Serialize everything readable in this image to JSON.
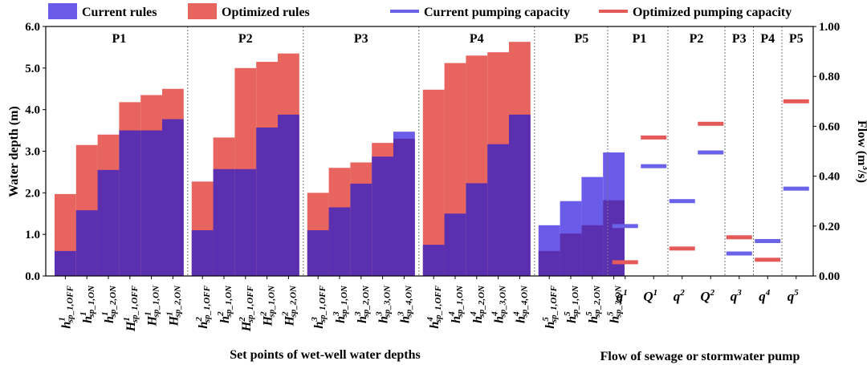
{
  "legend": {
    "current_rules": "Current rules",
    "optimized_rules": "Optimized rules",
    "current_capacity": "Current pumping capacity",
    "optimized_capacity": "Optimized pumping capacity"
  },
  "colors": {
    "current": "#6a5ce8",
    "optimized": "#e8645e",
    "overlap": "#5a2fb0",
    "current_line": "#6a62e8",
    "optimized_line": "#e45a58"
  },
  "chart_data": [
    {
      "type": "bar",
      "title": "",
      "ylabel": "Water depth (m)",
      "xlabel": "Set points of wet-well water depths",
      "ylim": [
        0,
        6
      ],
      "yticks": [
        "0.0",
        "1.0",
        "2.0",
        "3.0",
        "4.0",
        "5.0",
        "6.0"
      ],
      "groups": [
        {
          "name": "P1",
          "labels": [
            {
              "base": "h",
              "sup": "1",
              "sub": "sp_1,OFF"
            },
            {
              "base": "h",
              "sup": "1",
              "sub": "sp_1,ON"
            },
            {
              "base": "h",
              "sup": "1",
              "sub": "sp_2,ON"
            },
            {
              "base": "H",
              "sup": "1",
              "sub": "sp_1,OFF"
            },
            {
              "base": "H",
              "sup": "1",
              "sub": "sp_1,ON"
            },
            {
              "base": "H",
              "sup": "1",
              "sub": "sp_2,ON"
            }
          ],
          "current": [
            0.6,
            1.58,
            2.55,
            3.5,
            3.5,
            3.77
          ],
          "optimized": [
            1.97,
            3.15,
            3.4,
            4.18,
            4.35,
            4.5
          ]
        },
        {
          "name": "P2",
          "labels": [
            {
              "base": "h",
              "sup": "2",
              "sub": "sp_1,OFF"
            },
            {
              "base": "h",
              "sup": "2",
              "sub": "sp_1,ON"
            },
            {
              "base": "H",
              "sup": "2",
              "sub": "sp_1,OFF"
            },
            {
              "base": "H",
              "sup": "2",
              "sub": "sp_1,ON"
            },
            {
              "base": "H",
              "sup": "2",
              "sub": "sp_2,ON"
            }
          ],
          "current": [
            1.1,
            2.57,
            2.57,
            3.57,
            3.88
          ],
          "optimized": [
            2.27,
            3.33,
            5.0,
            5.15,
            5.35
          ]
        },
        {
          "name": "P3",
          "labels": [
            {
              "base": "h",
              "sup": "3",
              "sub": "sp_1,OFF"
            },
            {
              "base": "h",
              "sup": "3",
              "sub": "sp_1,ON"
            },
            {
              "base": "h",
              "sup": "3",
              "sub": "sp_2,ON"
            },
            {
              "base": "h",
              "sup": "3",
              "sub": "sp_3,ON"
            },
            {
              "base": "h",
              "sup": "3",
              "sub": "sp_4,ON"
            }
          ],
          "current": [
            1.1,
            1.65,
            2.22,
            2.87,
            3.47
          ],
          "optimized": [
            2.0,
            2.6,
            2.73,
            3.2,
            3.3
          ]
        },
        {
          "name": "P4",
          "labels": [
            {
              "base": "h",
              "sup": "4",
              "sub": "sp_1,OFF"
            },
            {
              "base": "h",
              "sup": "4",
              "sub": "sp_1,ON"
            },
            {
              "base": "h",
              "sup": "4",
              "sub": "sp_2,ON"
            },
            {
              "base": "h",
              "sup": "4",
              "sub": "sp_3,ON"
            },
            {
              "base": "h",
              "sup": "4",
              "sub": "sp_4,ON"
            }
          ],
          "current": [
            0.75,
            1.5,
            2.23,
            3.17,
            3.88
          ],
          "optimized": [
            4.48,
            5.12,
            5.3,
            5.38,
            5.63
          ]
        },
        {
          "name": "P5",
          "labels": [
            {
              "base": "h",
              "sup": "5",
              "sub": "sp_1,OFF"
            },
            {
              "base": "h",
              "sup": "5",
              "sub": "sp_1,ON"
            },
            {
              "base": "h",
              "sup": "5",
              "sub": "sp_2,ON"
            },
            {
              "base": "h",
              "sup": "5",
              "sub": "sp_3,ON"
            }
          ],
          "current": [
            1.22,
            1.8,
            2.38,
            2.97
          ],
          "optimized": [
            0.6,
            1.02,
            1.22,
            1.82
          ]
        }
      ]
    },
    {
      "type": "scatter",
      "ylabel": "Flow (m³/s)",
      "ylabel_main": "Flow (m",
      "ylabel_sup": "3",
      "ylabel_end": "/s)",
      "xlabel": "Flow of sewage or stormwater pump",
      "ylim": [
        0,
        1
      ],
      "yticks": [
        "0.00",
        "0.20",
        "0.40",
        "0.60",
        "0.80",
        "1.00"
      ],
      "groups": [
        {
          "name": "P1",
          "items": [
            {
              "base": "q",
              "sup": "1",
              "current": 0.2,
              "optimized": 0.055
            },
            {
              "base": "Q",
              "sup": "1",
              "current": 0.44,
              "optimized": 0.555
            }
          ]
        },
        {
          "name": "P2",
          "items": [
            {
              "base": "q",
              "sup": "2",
              "current": 0.3,
              "optimized": 0.11
            },
            {
              "base": "Q",
              "sup": "2",
              "current": 0.495,
              "optimized": 0.61
            }
          ]
        },
        {
          "name": "P3",
          "items": [
            {
              "base": "q",
              "sup": "3",
              "current": 0.09,
              "optimized": 0.155
            }
          ]
        },
        {
          "name": "P4",
          "items": [
            {
              "base": "q",
              "sup": "4",
              "current": 0.14,
              "optimized": 0.065
            }
          ]
        },
        {
          "name": "P5",
          "items": [
            {
              "base": "q",
              "sup": "5",
              "current": 0.35,
              "optimized": 0.7
            }
          ]
        }
      ]
    }
  ]
}
